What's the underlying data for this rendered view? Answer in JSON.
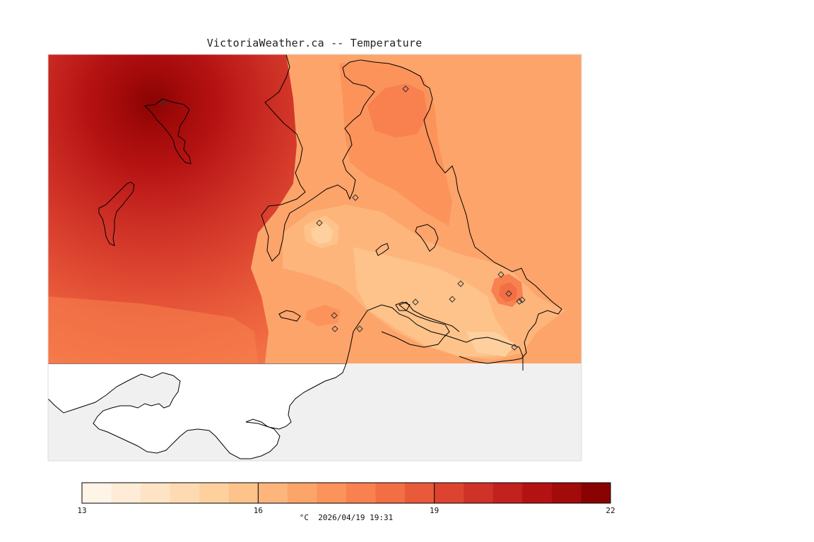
{
  "title": "VictoriaWeather.ca -- Temperature",
  "colors": {
    "water": "#f0f0f0",
    "land_outside": "#ffffff",
    "coast": "#000000"
  },
  "legend": {
    "min": 13,
    "max": 22,
    "step": 0.5,
    "tick_values": [
      13,
      16,
      19,
      22
    ],
    "tick_labels": [
      "13",
      "16",
      "19",
      "22"
    ],
    "colors": [
      "#fff4e8",
      "#feecd6",
      "#fee4c5",
      "#fedab2",
      "#fdd09e",
      "#fdc38a",
      "#fdb57c",
      "#fda46a",
      "#fb935b",
      "#f8814f",
      "#f26e44",
      "#e85a3a",
      "#dc4430",
      "#cf3226",
      "#c2211d",
      "#b41212",
      "#a30a0a",
      "#8a0303"
    ],
    "unit": "°C",
    "timestamp": "2026/04/19 19:31"
  },
  "stations": [
    {
      "id": "s1"
    },
    {
      "id": "s2"
    },
    {
      "id": "s3"
    },
    {
      "id": "s4"
    },
    {
      "id": "s5"
    },
    {
      "id": "s6"
    },
    {
      "id": "s7"
    },
    {
      "id": "s8"
    },
    {
      "id": "s9"
    },
    {
      "id": "s10"
    },
    {
      "id": "s11"
    },
    {
      "id": "s12"
    },
    {
      "id": "s13"
    },
    {
      "id": "s14"
    },
    {
      "id": "s15"
    }
  ]
}
